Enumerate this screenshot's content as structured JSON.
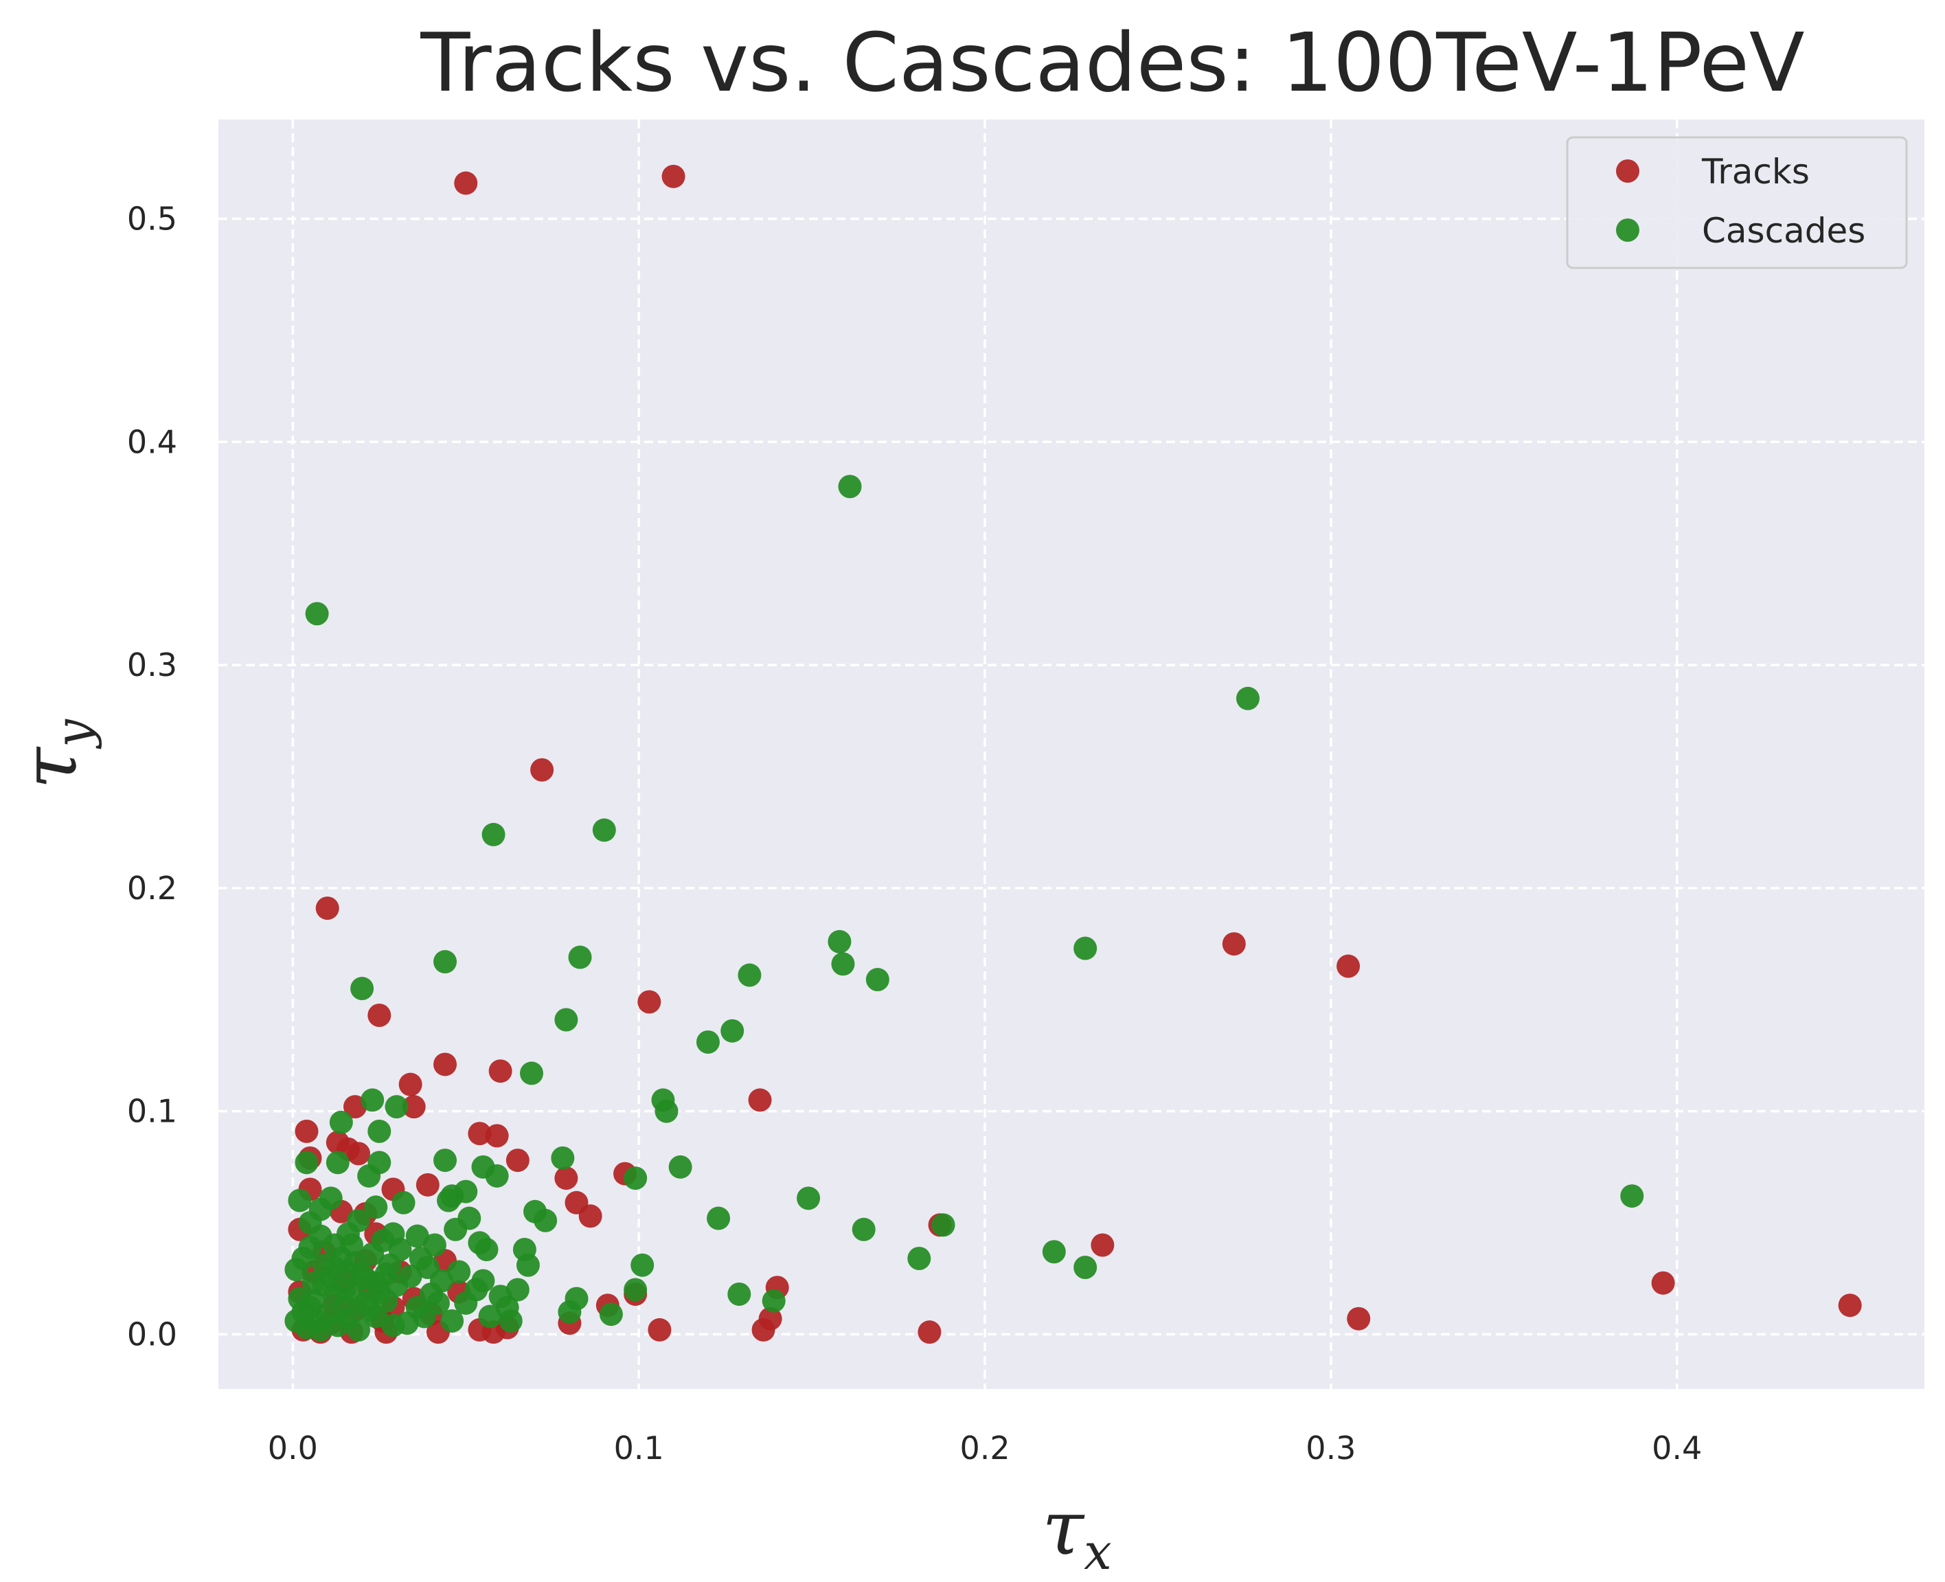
{
  "chart_data": {
    "type": "scatter",
    "title": "Tracks vs. Cascades: 100TeV-1PeV",
    "xlabel": {
      "symbol": "τ",
      "subscript": "x"
    },
    "ylabel": {
      "symbol": "τ",
      "subscript": "y"
    },
    "xlim": [
      -0.0215,
      0.4715
    ],
    "ylim": [
      -0.0245,
      0.5445
    ],
    "x_ticks": [
      0.0,
      0.1,
      0.2,
      0.3,
      0.4
    ],
    "x_tick_labels": [
      "0.0",
      "0.1",
      "0.2",
      "0.3",
      "0.4"
    ],
    "y_ticks": [
      0.0,
      0.1,
      0.2,
      0.3,
      0.4,
      0.5
    ],
    "y_tick_labels": [
      "0.0",
      "0.1",
      "0.2",
      "0.3",
      "0.4",
      "0.5"
    ],
    "grid": true,
    "grid_style": "dashed",
    "background_color": "#eaeaf2",
    "legend_position": "top-right",
    "series": [
      {
        "name": "Tracks",
        "color": "#b22222",
        "points": [
          [
            0.05,
            0.516
          ],
          [
            0.11,
            0.519
          ],
          [
            0.072,
            0.253
          ],
          [
            0.01,
            0.191
          ],
          [
            0.025,
            0.143
          ],
          [
            0.103,
            0.149
          ],
          [
            0.044,
            0.121
          ],
          [
            0.06,
            0.118
          ],
          [
            0.034,
            0.112
          ],
          [
            0.035,
            0.102
          ],
          [
            0.018,
            0.102
          ],
          [
            0.135,
            0.105
          ],
          [
            0.004,
            0.091
          ],
          [
            0.054,
            0.09
          ],
          [
            0.059,
            0.089
          ],
          [
            0.013,
            0.086
          ],
          [
            0.016,
            0.083
          ],
          [
            0.019,
            0.081
          ],
          [
            0.005,
            0.079
          ],
          [
            0.065,
            0.078
          ],
          [
            0.096,
            0.072
          ],
          [
            0.079,
            0.07
          ],
          [
            0.039,
            0.067
          ],
          [
            0.029,
            0.065
          ],
          [
            0.005,
            0.065
          ],
          [
            0.082,
            0.059
          ],
          [
            0.086,
            0.053
          ],
          [
            0.014,
            0.055
          ],
          [
            0.021,
            0.054
          ],
          [
            0.002,
            0.047
          ],
          [
            0.024,
            0.045
          ],
          [
            0.187,
            0.049
          ],
          [
            0.234,
            0.04
          ],
          [
            0.272,
            0.175
          ],
          [
            0.305,
            0.165
          ],
          [
            0.396,
            0.023
          ],
          [
            0.45,
            0.013
          ],
          [
            0.308,
            0.007
          ],
          [
            0.184,
            0.001
          ],
          [
            0.14,
            0.021
          ],
          [
            0.138,
            0.007
          ],
          [
            0.136,
            0.002
          ],
          [
            0.106,
            0.002
          ],
          [
            0.099,
            0.018
          ],
          [
            0.091,
            0.013
          ],
          [
            0.08,
            0.005
          ],
          [
            0.062,
            0.003
          ],
          [
            0.058,
            0.001
          ],
          [
            0.054,
            0.002
          ],
          [
            0.042,
            0.001
          ],
          [
            0.027,
            0.001
          ],
          [
            0.017,
            0.001
          ],
          [
            0.008,
            0.001
          ],
          [
            0.003,
            0.002
          ],
          [
            0.012,
            0.013
          ],
          [
            0.022,
            0.021
          ],
          [
            0.031,
            0.028
          ],
          [
            0.044,
            0.033
          ],
          [
            0.006,
            0.028
          ],
          [
            0.018,
            0.011
          ],
          [
            0.026,
            0.006
          ],
          [
            0.035,
            0.016
          ],
          [
            0.009,
            0.037
          ],
          [
            0.002,
            0.019
          ],
          [
            0.015,
            0.024
          ],
          [
            0.04,
            0.009
          ],
          [
            0.048,
            0.019
          ],
          [
            0.021,
            0.033
          ],
          [
            0.011,
            0.005
          ],
          [
            0.029,
            0.012
          ]
        ]
      },
      {
        "name": "Cascades",
        "color": "#228b22",
        "points": [
          [
            0.161,
            0.38
          ],
          [
            0.007,
            0.323
          ],
          [
            0.276,
            0.285
          ],
          [
            0.058,
            0.224
          ],
          [
            0.09,
            0.226
          ],
          [
            0.158,
            0.176
          ],
          [
            0.229,
            0.173
          ],
          [
            0.159,
            0.166
          ],
          [
            0.169,
            0.159
          ],
          [
            0.132,
            0.161
          ],
          [
            0.083,
            0.169
          ],
          [
            0.044,
            0.167
          ],
          [
            0.02,
            0.155
          ],
          [
            0.079,
            0.141
          ],
          [
            0.127,
            0.136
          ],
          [
            0.12,
            0.131
          ],
          [
            0.069,
            0.117
          ],
          [
            0.023,
            0.105
          ],
          [
            0.107,
            0.105
          ],
          [
            0.108,
            0.1
          ],
          [
            0.03,
            0.102
          ],
          [
            0.014,
            0.095
          ],
          [
            0.025,
            0.091
          ],
          [
            0.112,
            0.075
          ],
          [
            0.044,
            0.078
          ],
          [
            0.025,
            0.077
          ],
          [
            0.013,
            0.077
          ],
          [
            0.004,
            0.077
          ],
          [
            0.078,
            0.079
          ],
          [
            0.055,
            0.075
          ],
          [
            0.059,
            0.071
          ],
          [
            0.099,
            0.07
          ],
          [
            0.022,
            0.071
          ],
          [
            0.149,
            0.061
          ],
          [
            0.387,
            0.062
          ],
          [
            0.123,
            0.052
          ],
          [
            0.165,
            0.047
          ],
          [
            0.188,
            0.049
          ],
          [
            0.181,
            0.034
          ],
          [
            0.22,
            0.037
          ],
          [
            0.229,
            0.03
          ],
          [
            0.129,
            0.018
          ],
          [
            0.139,
            0.015
          ],
          [
            0.101,
            0.031
          ],
          [
            0.099,
            0.02
          ],
          [
            0.092,
            0.009
          ],
          [
            0.082,
            0.016
          ],
          [
            0.08,
            0.01
          ],
          [
            0.073,
            0.051
          ],
          [
            0.07,
            0.055
          ],
          [
            0.067,
            0.038
          ],
          [
            0.068,
            0.031
          ],
          [
            0.065,
            0.02
          ],
          [
            0.063,
            0.006
          ],
          [
            0.056,
            0.038
          ],
          [
            0.054,
            0.041
          ],
          [
            0.051,
            0.052
          ],
          [
            0.05,
            0.064
          ],
          [
            0.046,
            0.062
          ],
          [
            0.045,
            0.06
          ],
          [
            0.047,
            0.047
          ],
          [
            0.048,
            0.028
          ],
          [
            0.041,
            0.04
          ],
          [
            0.039,
            0.03
          ],
          [
            0.036,
            0.044
          ],
          [
            0.032,
            0.059
          ],
          [
            0.029,
            0.045
          ],
          [
            0.024,
            0.057
          ],
          [
            0.019,
            0.051
          ],
          [
            0.016,
            0.045
          ],
          [
            0.011,
            0.061
          ],
          [
            0.008,
            0.056
          ],
          [
            0.005,
            0.05
          ],
          [
            0.002,
            0.06
          ],
          [
            0.001,
            0.029
          ],
          [
            0.003,
            0.01
          ],
          [
            0.006,
            0.015
          ],
          [
            0.009,
            0.022
          ],
          [
            0.012,
            0.03
          ],
          [
            0.015,
            0.012
          ],
          [
            0.018,
            0.018
          ],
          [
            0.021,
            0.025
          ],
          [
            0.024,
            0.008
          ],
          [
            0.027,
            0.015
          ],
          [
            0.03,
            0.022
          ],
          [
            0.033,
            0.005
          ],
          [
            0.036,
            0.012
          ],
          [
            0.04,
            0.018
          ],
          [
            0.043,
            0.024
          ],
          [
            0.046,
            0.006
          ],
          [
            0.05,
            0.014
          ],
          [
            0.053,
            0.02
          ],
          [
            0.057,
            0.008
          ],
          [
            0.06,
            0.017
          ],
          [
            0.004,
            0.003
          ],
          [
            0.007,
            0.006
          ],
          [
            0.01,
            0.009
          ],
          [
            0.013,
            0.004
          ],
          [
            0.016,
            0.007
          ],
          [
            0.019,
            0.002
          ],
          [
            0.022,
            0.011
          ],
          [
            0.025,
            0.019
          ],
          [
            0.028,
            0.031
          ],
          [
            0.031,
            0.038
          ],
          [
            0.014,
            0.034
          ],
          [
            0.017,
            0.04
          ],
          [
            0.02,
            0.027
          ],
          [
            0.023,
            0.036
          ],
          [
            0.026,
            0.042
          ],
          [
            0.034,
            0.026
          ],
          [
            0.037,
            0.034
          ],
          [
            0.005,
            0.039
          ],
          [
            0.008,
            0.044
          ],
          [
            0.011,
            0.026
          ],
          [
            0.002,
            0.016
          ],
          [
            0.006,
            0.023
          ],
          [
            0.009,
            0.031
          ],
          [
            0.012,
            0.018
          ],
          [
            0.015,
            0.02
          ],
          [
            0.018,
            0.032
          ],
          [
            0.021,
            0.014
          ],
          [
            0.024,
            0.023
          ],
          [
            0.027,
            0.027
          ],
          [
            0.003,
            0.034
          ],
          [
            0.001,
            0.006
          ],
          [
            0.005,
            0.012
          ],
          [
            0.008,
            0.002
          ],
          [
            0.012,
            0.04
          ],
          [
            0.016,
            0.028
          ],
          [
            0.029,
            0.004
          ],
          [
            0.038,
            0.008
          ],
          [
            0.042,
            0.014
          ],
          [
            0.055,
            0.024
          ],
          [
            0.062,
            0.012
          ]
        ]
      }
    ]
  }
}
